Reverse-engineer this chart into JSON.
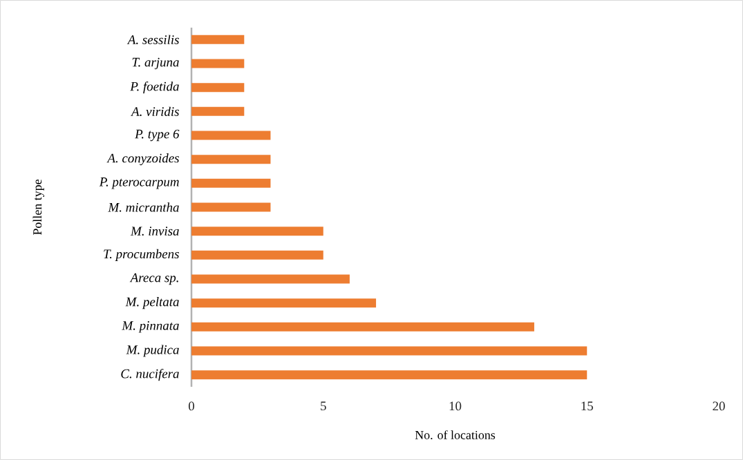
{
  "chart_data": {
    "type": "bar",
    "orientation": "horizontal",
    "xlabel": "No. of locations",
    "ylabel": "Pollen type",
    "categories": [
      "*A. sessilis*",
      "*T. arjuna*",
      "*P. foetida*",
      "*A. viridis*",
      "*P. type 6*",
      "*A. conyzoides*",
      "*P. pterocarpum*",
      "*M. micrantha*",
      "*M. invisa*",
      "*T. procumbens*",
      "*Areca sp.*",
      "*M. peltata*",
      "*M. pinnata*",
      "*M. pudica*",
      "*C. nucifera*"
    ],
    "values": [
      2,
      2,
      2,
      2,
      3,
      3,
      3,
      3,
      5,
      5,
      6,
      7,
      13,
      15,
      15
    ],
    "color": "#ed7d31",
    "xlim": [
      0,
      20
    ],
    "xticks": [
      0,
      5,
      10,
      15,
      20
    ]
  }
}
